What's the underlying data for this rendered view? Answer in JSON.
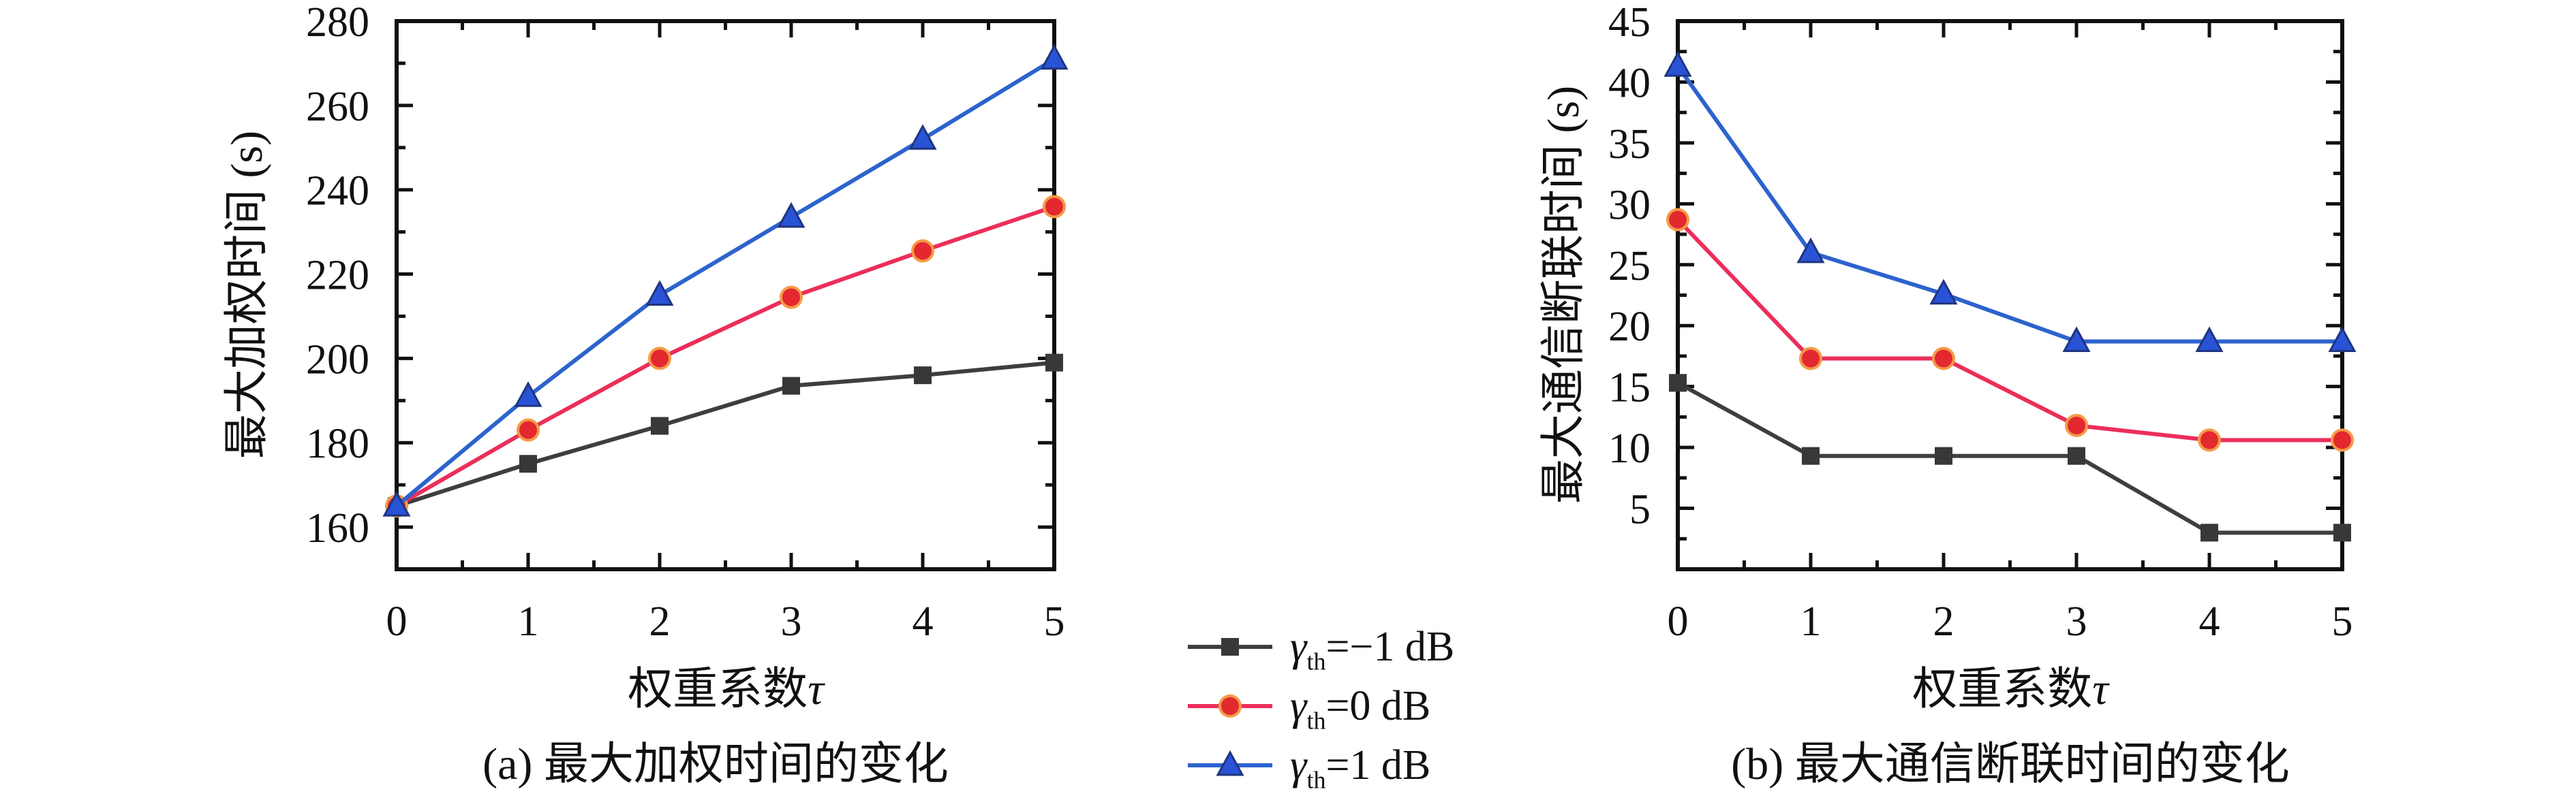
{
  "figure": {
    "background": "#ffffff",
    "axis_color": "#111111",
    "text_color": "#111111"
  },
  "legend": {
    "position": "bottom-center-between-plots",
    "items": [
      {
        "gamma": "γ",
        "sub": "th",
        "value": "=−1 dB",
        "line_color": "#3e3e3e",
        "marker": "square",
        "marker_color": "#383838",
        "marker_edge": "#2a2a2a"
      },
      {
        "gamma": "γ",
        "sub": "th",
        "value": "=0 dB",
        "line_color": "#ec2e5a",
        "marker": "circle",
        "marker_color": "#e32830",
        "marker_edge": "#f59b47"
      },
      {
        "gamma": "γ",
        "sub": "th",
        "value": "=1 dB",
        "line_color": "#2c63cd",
        "marker": "triangle",
        "marker_color": "#2953d6",
        "marker_edge": "#20357f"
      }
    ]
  },
  "chart_data": [
    {
      "id": "a",
      "type": "line",
      "title": "(a) 最大加权时间的变化",
      "xlabel": "权重系数τ",
      "xlabel_cjk": "权重系数",
      "xlabel_sym": "τ",
      "ylabel": "最大加权时间 (s)",
      "x": [
        0,
        1,
        2,
        3,
        4,
        5
      ],
      "series": [
        {
          "name": "γth=−1 dB",
          "marker": "square",
          "line_color": "#3e3e3e",
          "marker_color": "#383838",
          "marker_edge": "#2a2a2a",
          "values": [
            165,
            175,
            184,
            193.5,
            196,
            199
          ]
        },
        {
          "name": "γth=0 dB",
          "marker": "circle",
          "line_color": "#ec2e5a",
          "marker_color": "#e32830",
          "marker_edge": "#f59b47",
          "values": [
            165,
            183,
            200,
            214.5,
            225.5,
            236
          ]
        },
        {
          "name": "γth=1 dB",
          "marker": "triangle",
          "line_color": "#2c63cd",
          "marker_color": "#2953d6",
          "marker_edge": "#20357f",
          "values": [
            165,
            191,
            215,
            233.5,
            252,
            271
          ]
        }
      ],
      "xlim": [
        0,
        5
      ],
      "ylim": [
        150,
        280
      ],
      "xticks": [
        0,
        1,
        2,
        3,
        4,
        5
      ],
      "yticks": [
        160,
        180,
        200,
        220,
        240,
        260,
        280
      ],
      "x_minor_step": 0.5,
      "y_minor_step": 10,
      "grid": false,
      "box": true,
      "tick_direction": "in",
      "legend_position": "none"
    },
    {
      "id": "b",
      "type": "line",
      "title": "(b) 最大通信断联时间的变化",
      "xlabel": "权重系数τ",
      "xlabel_cjk": "权重系数",
      "xlabel_sym": "τ",
      "ylabel": "最大通信断联时间 (s)",
      "x": [
        0,
        1,
        2,
        3,
        4,
        5
      ],
      "series": [
        {
          "name": "γth=−1 dB",
          "marker": "square",
          "line_color": "#3e3e3e",
          "marker_color": "#383838",
          "marker_edge": "#2a2a2a",
          "values": [
            15.3,
            9.3,
            9.3,
            9.3,
            3,
            3
          ]
        },
        {
          "name": "γth=0 dB",
          "marker": "circle",
          "line_color": "#ec2e5a",
          "marker_color": "#e32830",
          "marker_edge": "#f59b47",
          "values": [
            28.7,
            17.3,
            17.3,
            11.8,
            10.6,
            10.6
          ]
        },
        {
          "name": "γth=1 dB",
          "marker": "triangle",
          "line_color": "#2c63cd",
          "marker_color": "#2953d6",
          "marker_edge": "#20357f",
          "values": [
            41.3,
            26,
            22.6,
            18.7,
            18.7,
            18.7
          ]
        }
      ],
      "xlim": [
        0,
        5
      ],
      "ylim": [
        0,
        45
      ],
      "xticks": [
        0,
        1,
        2,
        3,
        4,
        5
      ],
      "yticks": [
        5,
        10,
        15,
        20,
        25,
        30,
        35,
        40,
        45
      ],
      "x_minor_step": 0.5,
      "y_minor_step": 2.5,
      "grid": false,
      "box": true,
      "tick_direction": "in",
      "legend_position": "none"
    }
  ]
}
